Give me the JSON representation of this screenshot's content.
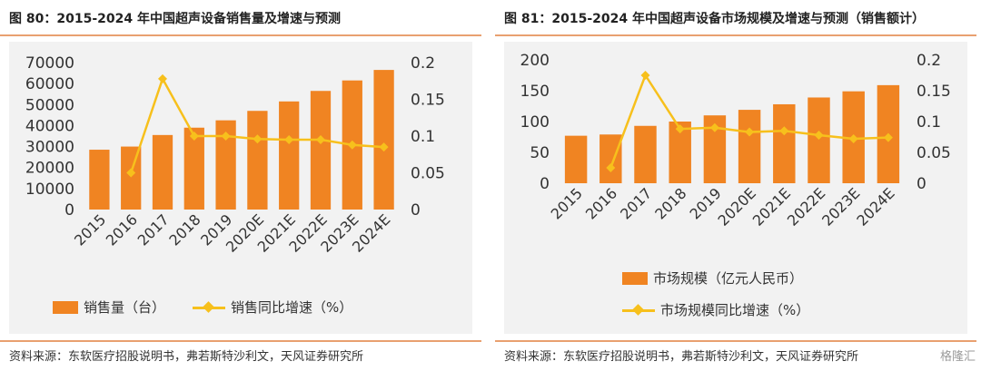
{
  "left": {
    "title": "图 80：2015-2024 年中国超声设备销售量及增速与预测",
    "source": "资料来源：东软医疗招股说明书，弗若斯特沙利文，天风证券研究所",
    "legend": {
      "bar": "销售量（台）",
      "line": "销售同比增速（%）"
    }
  },
  "right": {
    "title": "图 81：2015-2024 年中国超声设备市场规模及增速与预测（销售额计）",
    "source": "资料来源：东软医疗招股说明书，弗若斯特沙利文，天风证券研究所",
    "legend": {
      "bar": "市场规模（亿元人民币）",
      "line": "市场规模同比增速（%）"
    }
  },
  "watermark": "格隆汇",
  "colors": {
    "bar": "#f08422",
    "line": "#f7c01c",
    "rule": "#e9a070",
    "plot_bg": "#f2f2f2"
  },
  "chart_data": [
    {
      "type": "bar",
      "categories": [
        "2015",
        "2016",
        "2017",
        "2018",
        "2019",
        "2020E",
        "2021E",
        "2022E",
        "2023E",
        "2024E"
      ],
      "series": [
        {
          "name": "销售量（台）",
          "type": "bar",
          "axis": "left",
          "values": [
            28500,
            30000,
            35500,
            39000,
            42500,
            47000,
            51500,
            56500,
            61500,
            66500
          ]
        },
        {
          "name": "销售同比增速（%）",
          "type": "line",
          "axis": "right",
          "values": [
            null,
            0.05,
            0.178,
            0.1,
            0.1,
            0.096,
            0.095,
            0.095,
            0.088,
            0.085
          ]
        }
      ],
      "ylim": [
        0,
        70000
      ],
      "yticks": [
        0,
        10000,
        20000,
        30000,
        40000,
        50000,
        60000,
        70000
      ],
      "y2lim": [
        0,
        0.2
      ],
      "y2ticks": [
        "0",
        "0.05",
        "0.1",
        "0.15",
        "0.2"
      ],
      "grid": false,
      "legend": "bottom"
    },
    {
      "type": "bar",
      "categories": [
        "2015",
        "2016",
        "2017",
        "2018",
        "2019",
        "2020E",
        "2021E",
        "2022E",
        "2023E",
        "2024E"
      ],
      "series": [
        {
          "name": "市场规模（亿元人民币）",
          "type": "bar",
          "axis": "left",
          "values": [
            77,
            79,
            93,
            100,
            110,
            119,
            128,
            139,
            149,
            159
          ]
        },
        {
          "name": "市场规模同比增速（%）",
          "type": "line",
          "axis": "right",
          "values": [
            null,
            0.025,
            0.175,
            0.088,
            0.09,
            0.083,
            0.085,
            0.078,
            0.072,
            0.074
          ]
        }
      ],
      "ylim": [
        0,
        200
      ],
      "yticks": [
        0,
        50,
        100,
        150,
        200
      ],
      "y2lim": [
        0,
        0.2
      ],
      "y2ticks": [
        "0",
        "0.05",
        "0.1",
        "0.15",
        "0.2"
      ],
      "grid": false,
      "legend": "bottom"
    }
  ]
}
